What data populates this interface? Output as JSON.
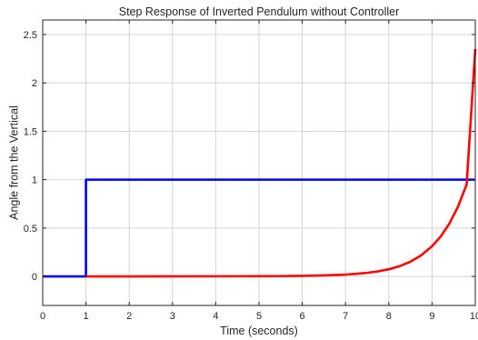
{
  "chart_data": {
    "type": "line",
    "title": "Step Response of Inverted Pendulum without Controller",
    "xlabel": "Time (seconds)",
    "ylabel": "Angle from the Vertical",
    "xlim": [
      0,
      10
    ],
    "ylim": [
      -0.3,
      2.65
    ],
    "xticks": [
      0,
      1,
      2,
      3,
      4,
      5,
      6,
      7,
      8,
      9,
      10
    ],
    "xtick_labels": [
      "0",
      "1",
      "2",
      "3",
      "4",
      "5",
      "6",
      "7",
      "8",
      "9",
      "10"
    ],
    "yticks": [
      0,
      0.5,
      1,
      1.5,
      2,
      2.5
    ],
    "ytick_labels": [
      "0",
      "0.5",
      "1",
      "1.5",
      "2",
      "2.5"
    ],
    "grid": true,
    "legend": null,
    "series": [
      {
        "color": "#0000ff",
        "x": [
          0,
          1,
          1,
          10
        ],
        "y": [
          0,
          0,
          1,
          1
        ]
      },
      {
        "color": "#ff0000",
        "x": [
          1,
          5,
          5.5,
          6,
          6.5,
          7,
          7.25,
          7.5,
          7.75,
          8,
          8.25,
          8.5,
          8.75,
          9,
          9.2,
          9.4,
          9.6,
          9.8,
          10
        ],
        "y": [
          0,
          0.002,
          0.003,
          0.006,
          0.011,
          0.019,
          0.027,
          0.037,
          0.052,
          0.074,
          0.106,
          0.152,
          0.218,
          0.312,
          0.412,
          0.545,
          0.72,
          0.95,
          2.35
        ]
      }
    ]
  }
}
